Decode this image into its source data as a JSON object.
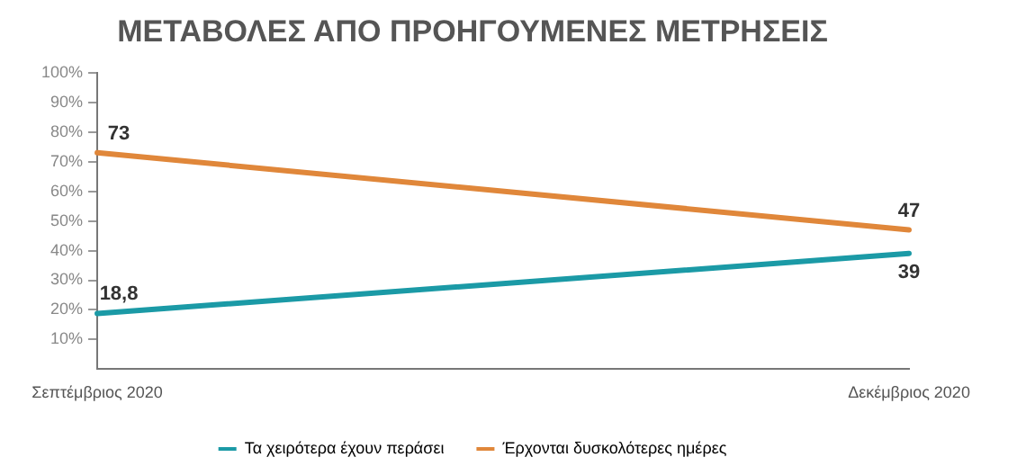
{
  "chart_data": {
    "type": "line",
    "title": "ΜΕΤΑΒΟΛΕΣ ΑΠΟ ΠΡΟΗΓΟΥΜΕΝΕΣ ΜΕΤΡΗΣΕΙΣ",
    "categories": [
      "Σεπτέμβριος 2020",
      "Δεκέμβριος 2020"
    ],
    "series": [
      {
        "name": "Τα χειρότερα έχουν περάσει",
        "color": "#1b9aa6",
        "values": [
          18.8,
          39
        ],
        "value_labels": [
          "18,8",
          "39"
        ]
      },
      {
        "name": "Έρχονται δυσκολότερες ημέρες",
        "color": "#e0873a",
        "values": [
          73,
          47
        ],
        "value_labels": [
          "73",
          "47"
        ]
      }
    ],
    "ylim": [
      0,
      100
    ],
    "yticks": [
      {
        "value": 10,
        "label": "10%"
      },
      {
        "value": 20,
        "label": "20%"
      },
      {
        "value": 30,
        "label": "30%"
      },
      {
        "value": 40,
        "label": "40%"
      },
      {
        "value": 50,
        "label": "50%"
      },
      {
        "value": 60,
        "label": "60%"
      },
      {
        "value": 70,
        "label": "70%"
      },
      {
        "value": 80,
        "label": "80%"
      },
      {
        "value": 90,
        "label": "90%"
      },
      {
        "value": 100,
        "label": "100%"
      }
    ],
    "grid": false,
    "legend": "bottom",
    "marker": "none",
    "line_style": "solid"
  }
}
